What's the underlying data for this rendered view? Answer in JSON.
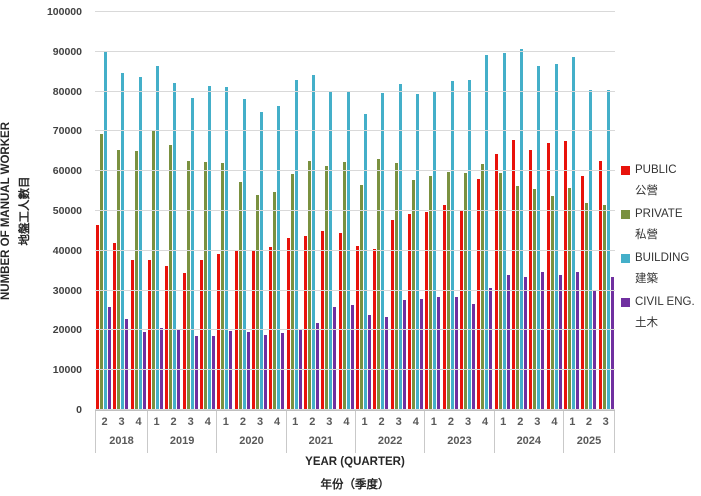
{
  "chart_data": {
    "type": "bar",
    "title": "",
    "ylabel_en": "NUMBER OF MANUAL WORKER",
    "ylabel_zh": "地盤工人數目",
    "xlabel_en": "YEAR (QUARTER)",
    "xlabel_zh": "年份（季度）",
    "ylim": [
      0,
      100000
    ],
    "ytick_step": 10000,
    "yticks": [
      0,
      10000,
      20000,
      30000,
      40000,
      50000,
      60000,
      70000,
      80000,
      90000,
      100000
    ],
    "grid": "horizontal",
    "legend_position": "right",
    "grid_color": "#d9d9d9",
    "axis_label_color": "#595959",
    "years": [
      {
        "label": "2018",
        "quarters": [
          "2",
          "3",
          "4"
        ]
      },
      {
        "label": "2019",
        "quarters": [
          "1",
          "2",
          "3",
          "4"
        ]
      },
      {
        "label": "2020",
        "quarters": [
          "1",
          "2",
          "3",
          "4"
        ]
      },
      {
        "label": "2021",
        "quarters": [
          "1",
          "2",
          "3",
          "4"
        ]
      },
      {
        "label": "2022",
        "quarters": [
          "1",
          "2",
          "3",
          "4"
        ]
      },
      {
        "label": "2023",
        "quarters": [
          "1",
          "2",
          "3",
          "4"
        ]
      },
      {
        "label": "2024",
        "quarters": [
          "1",
          "2",
          "3",
          "4"
        ]
      },
      {
        "label": "2025",
        "quarters": [
          "1",
          "2",
          "3"
        ]
      }
    ],
    "series": [
      {
        "name": "PUBLIC",
        "name_zh": "公營",
        "color": "#e8120b",
        "values": [
          46400,
          42000,
          37700,
          37700,
          36100,
          34400,
          37700,
          39100,
          40300,
          40000,
          41000,
          43100,
          43800,
          45000,
          44500,
          41200,
          40500,
          47700,
          49300,
          49700,
          51500,
          50100,
          58100,
          64200,
          67800,
          65400,
          67200,
          67700,
          58900,
          62500
        ]
      },
      {
        "name": "PRIVATE",
        "name_zh": "私營",
        "color": "#7a9140",
        "values": [
          69300,
          65400,
          65100,
          70100,
          66600,
          62500,
          62200,
          62000,
          57300,
          53900,
          54800,
          59400,
          62500,
          61400,
          62400,
          56600,
          63000,
          62000,
          57700,
          58800,
          59800,
          59600,
          61700,
          59500,
          56300,
          55600,
          53800,
          55900,
          52000,
          51600
        ]
      },
      {
        "name": "BUILDING",
        "name_zh": "建築",
        "color": "#44afc9",
        "values": [
          89900,
          84600,
          83700,
          86500,
          82200,
          78400,
          81400,
          81200,
          78200,
          74900,
          76300,
          82800,
          84100,
          80200,
          80200,
          74500,
          79700,
          82000,
          79500,
          80100,
          82600,
          82900,
          89200,
          89600,
          90600,
          86500,
          86900,
          88800,
          80300,
          80500
        ]
      },
      {
        "name": "CIVIL ENG.",
        "name_zh": "土木",
        "color": "#7030a0",
        "values": [
          26000,
          22800,
          19600,
          20700,
          20200,
          18600,
          18500,
          19900,
          19500,
          18900,
          19300,
          20000,
          21800,
          25800,
          26300,
          23800,
          23400,
          27600,
          27900,
          28500,
          28300,
          26600,
          30600,
          33800,
          33500,
          34800,
          34000,
          34800,
          30100,
          33400
        ]
      }
    ]
  }
}
